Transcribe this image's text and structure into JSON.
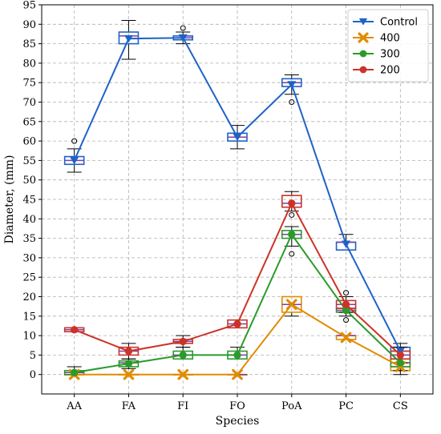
{
  "chart_data": {
    "type": "line",
    "xlabel": "Species",
    "ylabel": "Diameter, (mm)",
    "categories": [
      "AA",
      "FA",
      "FI",
      "FO",
      "PoA",
      "PC",
      "CS"
    ],
    "ylim": [
      -5,
      95
    ],
    "yticks": [
      0,
      5,
      10,
      15,
      20,
      25,
      30,
      35,
      40,
      45,
      50,
      55,
      60,
      65,
      70,
      75,
      80,
      85,
      90,
      95
    ],
    "grid": true,
    "legend_position": "top-right",
    "series": [
      {
        "name": "Control",
        "color": "#1f62c7",
        "marker": "triangle-down",
        "values": [
          55,
          86.3,
          86.5,
          61,
          74.5,
          33.5,
          6
        ],
        "boxes": [
          {
            "q1": 54,
            "median": 55,
            "q3": 56,
            "whislo": 52,
            "whishi": 58,
            "fliers": [
              60
            ]
          },
          {
            "q1": 85,
            "median": 87,
            "q3": 88,
            "whislo": 81,
            "whishi": 91,
            "fliers": []
          },
          {
            "q1": 86,
            "median": 86.5,
            "q3": 87,
            "whislo": 85,
            "whishi": 88,
            "fliers": [
              89
            ]
          },
          {
            "q1": 60,
            "median": 61,
            "q3": 62,
            "whislo": 58,
            "whishi": 64,
            "fliers": []
          },
          {
            "q1": 74,
            "median": 75,
            "q3": 76,
            "whislo": 72,
            "whishi": 77,
            "fliers": [
              70
            ]
          },
          {
            "q1": 32,
            "median": 34,
            "q3": 34,
            "whislo": 32,
            "whishi": 36,
            "fliers": []
          },
          {
            "q1": 4,
            "median": 6,
            "q3": 7,
            "whislo": 2,
            "whishi": 8,
            "fliers": []
          }
        ]
      },
      {
        "name": "400",
        "color": "#e08c00",
        "marker": "x-filled",
        "values": [
          0,
          0,
          0,
          0,
          18,
          9.5,
          2
        ],
        "boxes": [
          {
            "q1": 0,
            "median": 0,
            "q3": 0,
            "whislo": 0,
            "whishi": 0,
            "fliers": []
          },
          {
            "q1": 0,
            "median": 0,
            "q3": 0,
            "whislo": 0,
            "whishi": 0,
            "fliers": []
          },
          {
            "q1": 0,
            "median": 0,
            "q3": 0,
            "whislo": 0,
            "whishi": 0,
            "fliers": []
          },
          {
            "q1": 0,
            "median": 0,
            "q3": 0,
            "whislo": 0,
            "whishi": 0,
            "fliers": []
          },
          {
            "q1": 16,
            "median": 18,
            "q3": 20,
            "whislo": 15,
            "whishi": 20,
            "fliers": []
          },
          {
            "q1": 9,
            "median": 10,
            "q3": 10,
            "whislo": 9,
            "whishi": 10,
            "fliers": []
          },
          {
            "q1": 1,
            "median": 2,
            "q3": 3,
            "whislo": 0,
            "whishi": 4,
            "fliers": []
          }
        ]
      },
      {
        "name": "300",
        "color": "#2a9a2a",
        "marker": "circle",
        "values": [
          0.5,
          2.8,
          5,
          5,
          36,
          16.5,
          3
        ],
        "boxes": [
          {
            "q1": 0,
            "median": 0.5,
            "q3": 1,
            "whislo": 0,
            "whishi": 2,
            "fliers": []
          },
          {
            "q1": 2,
            "median": 3,
            "q3": 3.5,
            "whislo": 1.5,
            "whishi": 4,
            "fliers": []
          },
          {
            "q1": 4,
            "median": 5,
            "q3": 6,
            "whislo": 4,
            "whishi": 7,
            "fliers": []
          },
          {
            "q1": 4,
            "median": 5,
            "q3": 6,
            "whislo": 4,
            "whishi": 7,
            "fliers": []
          },
          {
            "q1": 35,
            "median": 36,
            "q3": 37,
            "whislo": 33,
            "whishi": 38,
            "fliers": [
              31
            ]
          },
          {
            "q1": 16,
            "median": 16.5,
            "q3": 17,
            "whislo": 15,
            "whishi": 18,
            "fliers": [
              14
            ]
          },
          {
            "q1": 2,
            "median": 3,
            "q3": 4,
            "whislo": 1,
            "whishi": 5,
            "fliers": []
          }
        ]
      },
      {
        "name": "200",
        "color": "#cc3328",
        "marker": "circle",
        "values": [
          11.5,
          6,
          8.5,
          13,
          44,
          18,
          5
        ],
        "boxes": [
          {
            "q1": 11,
            "median": 11.5,
            "q3": 12,
            "whislo": 11,
            "whishi": 12,
            "fliers": []
          },
          {
            "q1": 5,
            "median": 6,
            "q3": 7,
            "whislo": 4,
            "whishi": 8,
            "fliers": []
          },
          {
            "q1": 8,
            "median": 8.5,
            "q3": 9,
            "whislo": 7,
            "whishi": 10,
            "fliers": []
          },
          {
            "q1": 12,
            "median": 13,
            "q3": 14,
            "whislo": 12,
            "whishi": 14,
            "fliers": []
          },
          {
            "q1": 43,
            "median": 44,
            "q3": 46,
            "whislo": 42,
            "whishi": 47,
            "fliers": [
              41
            ]
          },
          {
            "q1": 17,
            "median": 18,
            "q3": 19,
            "whislo": 16,
            "whishi": 20,
            "fliers": [
              21
            ]
          },
          {
            "q1": 4,
            "median": 5,
            "q3": 6,
            "whislo": 3,
            "whishi": 7,
            "fliers": []
          }
        ]
      }
    ]
  }
}
